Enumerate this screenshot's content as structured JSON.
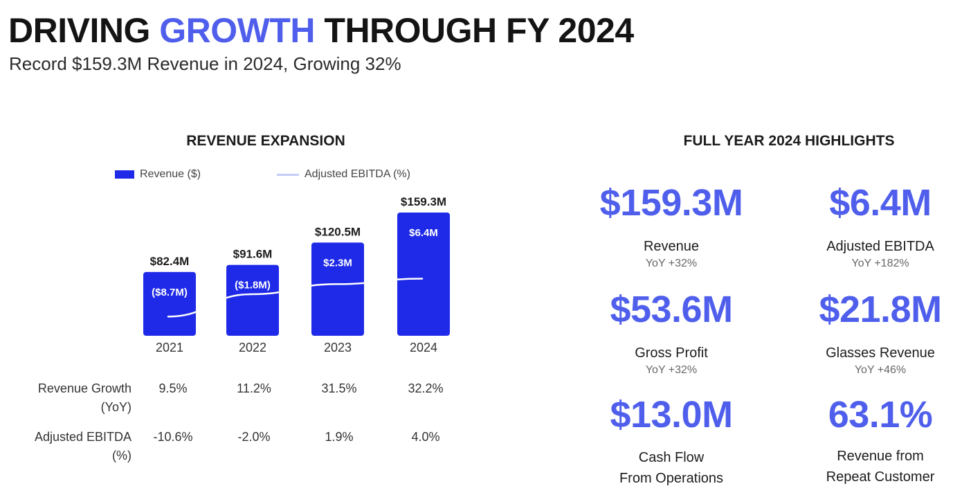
{
  "header": {
    "title_part1": "DRIVING",
    "title_accent": "GROWTH",
    "title_part2": "THROUGH FY 2024",
    "subtitle": "Record $159.3M Revenue in 2024, Growing 32%"
  },
  "chart_data": {
    "type": "bar",
    "title": "REVENUE EXPANSION",
    "categories": [
      "2021",
      "2022",
      "2023",
      "2024"
    ],
    "series": [
      {
        "name": "Revenue ($)",
        "kind": "bar",
        "values": [
          82.4,
          91.6,
          120.5,
          159.3
        ],
        "value_labels": [
          "$82.4M",
          "$91.6M",
          "$120.5M",
          "$159.3M"
        ],
        "color": "#1f2ae8"
      },
      {
        "name": "Adjusted EBITDA (%)",
        "kind": "line",
        "values": [
          -10.6,
          -2.0,
          1.9,
          4.0
        ],
        "color": "#ffffff",
        "legend_color": "#c6ccf7"
      }
    ],
    "bar_inner_labels": [
      "($8.7M)",
      "($1.8M)",
      "$2.3M",
      "$6.4M"
    ],
    "ylim": [
      0,
      170
    ],
    "ebitda_range": [
      -14,
      10
    ],
    "grid": false,
    "legend": "top"
  },
  "table": {
    "rows": [
      {
        "label": "Revenue Growth\n(YoY)",
        "values": [
          "9.5%",
          "11.2%",
          "31.5%",
          "32.2%"
        ]
      },
      {
        "label": "Adjusted EBITDA\n(%)",
        "values": [
          "-10.6%",
          "-2.0%",
          "1.9%",
          "4.0%"
        ]
      }
    ]
  },
  "highlights": {
    "title": "FULL YEAR 2024 HIGHLIGHTS",
    "items": [
      {
        "value": "$159.3M",
        "label": "Revenue",
        "yoy": "YoY +32%"
      },
      {
        "value": "$6.4M",
        "label": "Adjusted EBITDA",
        "yoy": "YoY +182%"
      },
      {
        "value": "$53.6M",
        "label": "Gross Profit",
        "yoy": "YoY +32%"
      },
      {
        "value": "$21.8M",
        "label": "Glasses Revenue",
        "yoy": "YoY +46%"
      },
      {
        "value": "$13.0M",
        "label": "Cash Flow\nFrom Operations",
        "yoy": ""
      },
      {
        "value": "63.1%",
        "label": "Revenue from\nRepeat Customer",
        "yoy": ""
      }
    ]
  },
  "colors": {
    "accent": "#4f5fec",
    "bar": "#1f2ae8",
    "line_legend": "#c6ccf7"
  }
}
